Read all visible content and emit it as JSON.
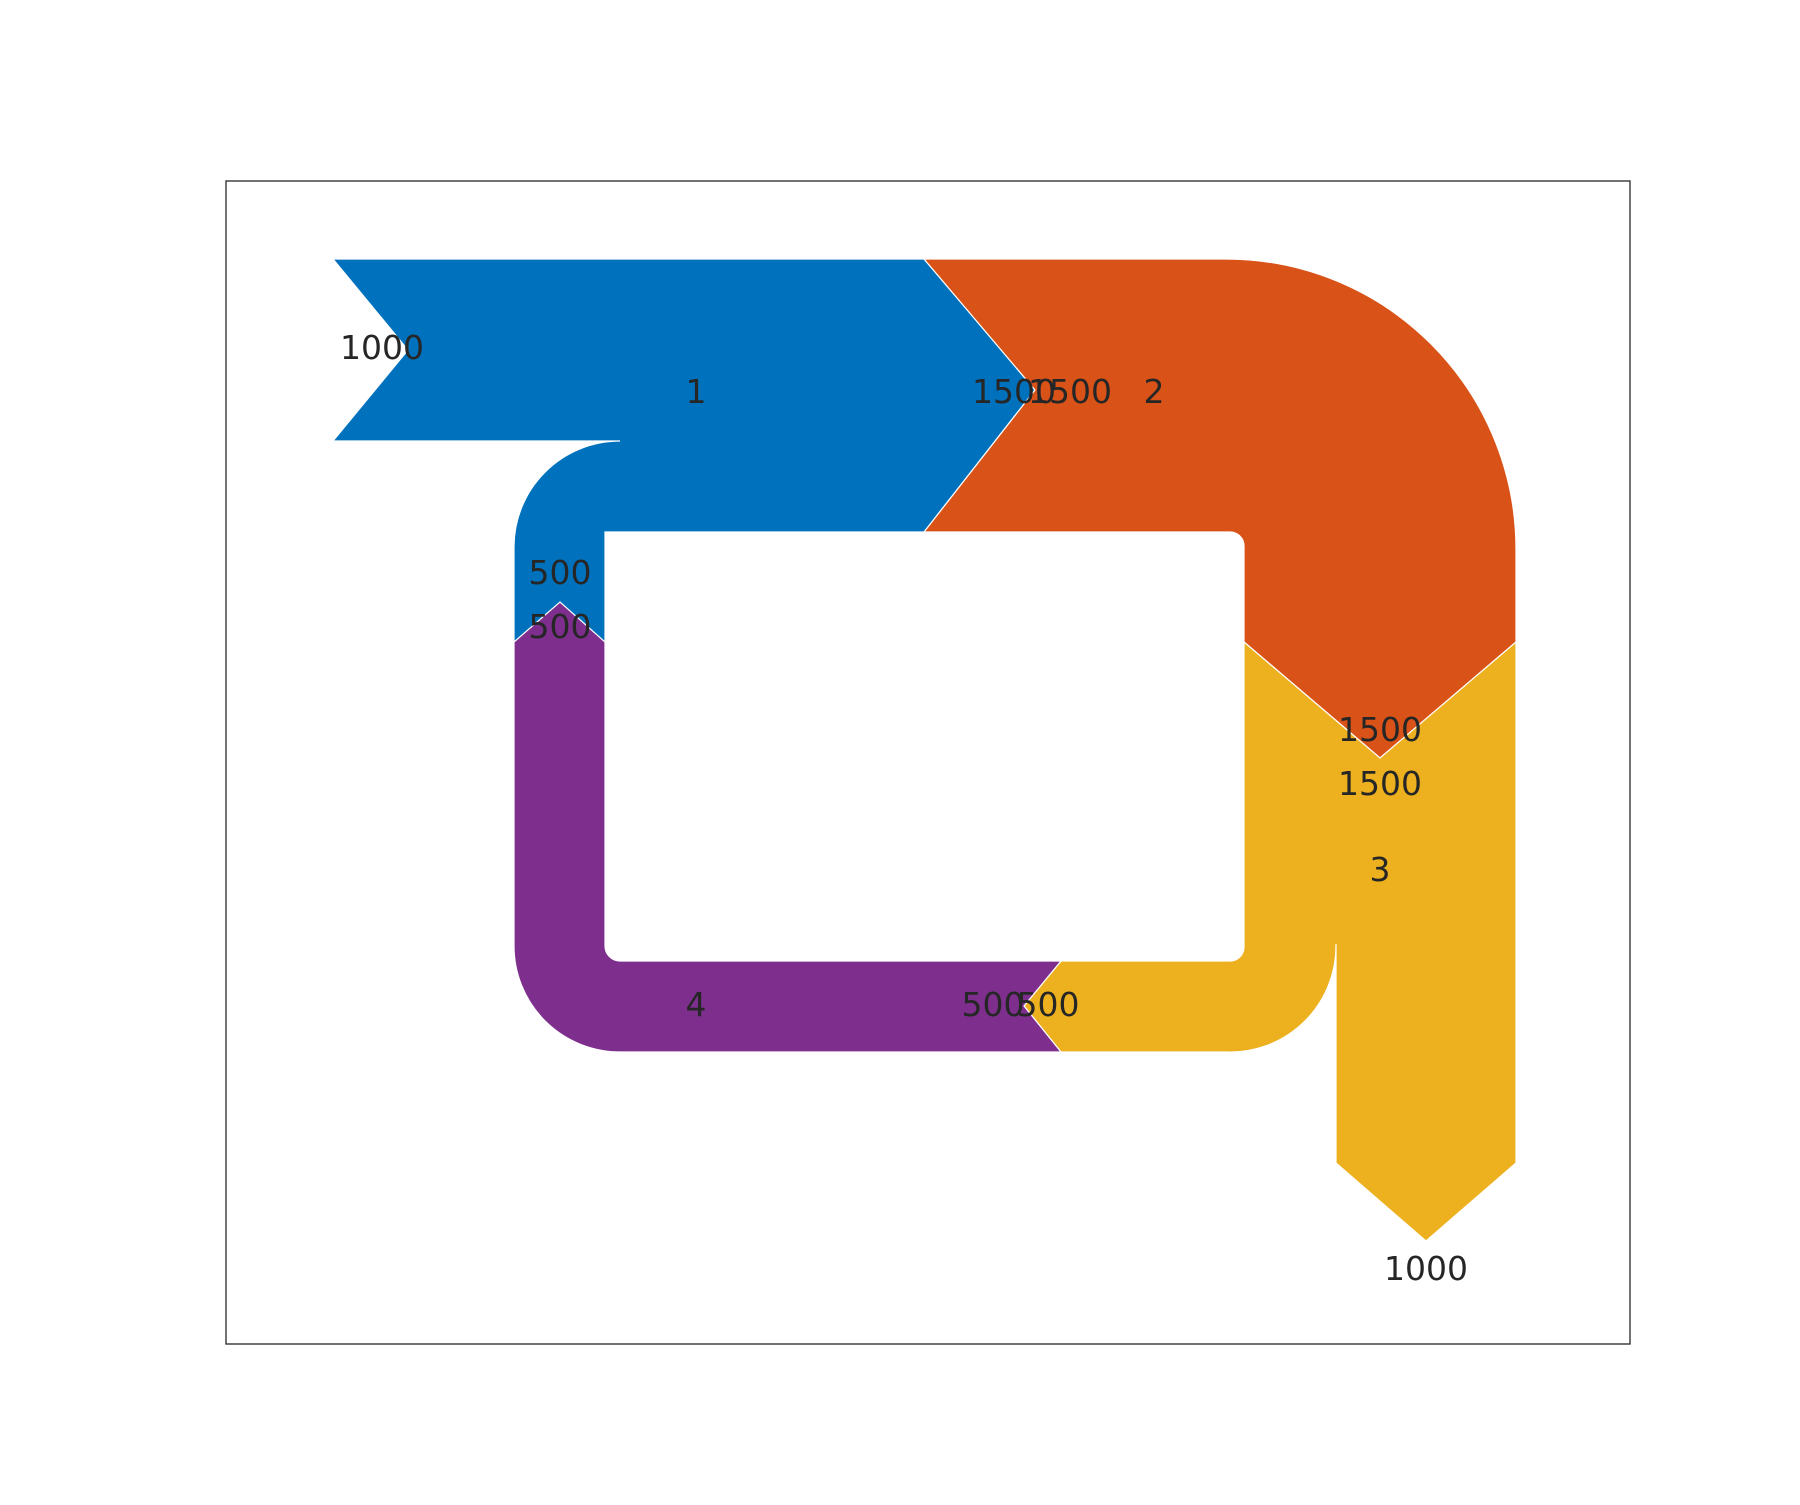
{
  "diagram": {
    "type": "sankey",
    "colors": {
      "stage_1": "#0072BD",
      "stage_2": "#D95319",
      "stage_3": "#EDB120",
      "stage_4": "#7E2F8E"
    },
    "nodes": [
      {
        "id": "n1",
        "label": "1",
        "color_key": "stage_1"
      },
      {
        "id": "n2",
        "label": "2",
        "color_key": "stage_2"
      },
      {
        "id": "n3",
        "label": "3",
        "color_key": "stage_3"
      },
      {
        "id": "n4",
        "label": "4",
        "color_key": "stage_4"
      }
    ],
    "flow_labels": {
      "input_1": "1000",
      "loop_out_1": "500",
      "loop_in_4": "500",
      "out_1": "1500",
      "in_2": "1500",
      "out_2": "1500",
      "in_3": "1500",
      "out_3_to_4": "500",
      "in_4": "500",
      "output_3": "1000"
    }
  }
}
